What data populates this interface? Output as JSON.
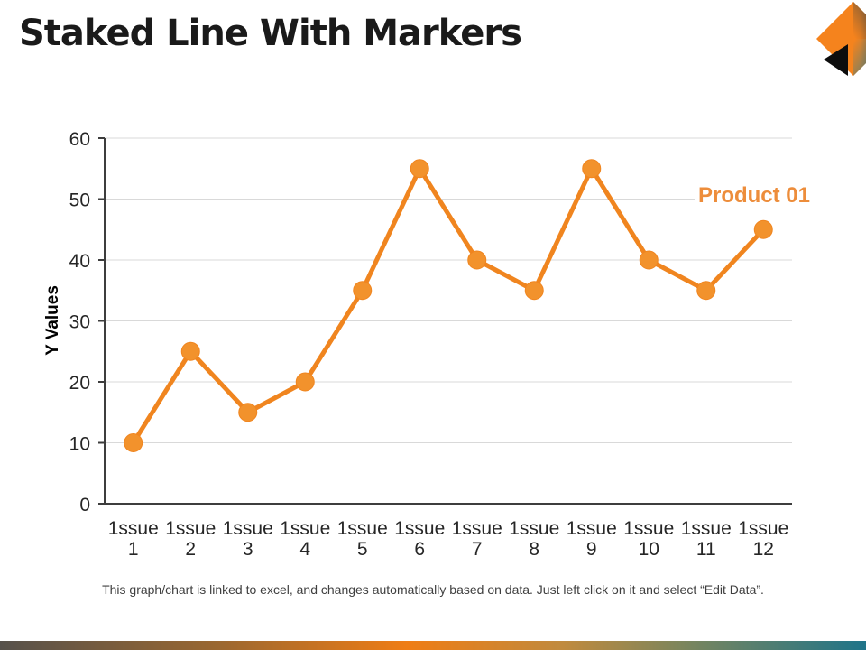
{
  "header": {
    "title": "Staked Line With Markers"
  },
  "footer": {
    "note": "This graph/chart is linked to excel, and changes automatically based on data. Just left click on it and select “Edit Data”."
  },
  "chart_data": {
    "type": "line",
    "categories": [
      "1ssue 1",
      "1ssue 2",
      "1ssue 3",
      "1ssue 4",
      "1ssue 5",
      "1ssue 6",
      "1ssue 7",
      "1ssue 8",
      "1ssue 9",
      "1ssue 10",
      "1ssue 11",
      "1ssue 12"
    ],
    "series": [
      {
        "name": "Product 01",
        "values": [
          10,
          25,
          15,
          20,
          35,
          55,
          40,
          35,
          55,
          40,
          35,
          45
        ]
      }
    ],
    "xlabel": "",
    "ylabel": "Y Values",
    "ylim": [
      0,
      60
    ],
    "yticks": [
      0,
      10,
      20,
      30,
      40,
      50,
      60
    ],
    "grid": true,
    "legend_position": "inside-top-right",
    "marker": "circle"
  },
  "theme": {
    "line_color": "#F0851F",
    "marker_color": "#F2922C",
    "legend_color": "#ED8D3B",
    "grid_color": "#D9D9D9",
    "axis_color": "#3D3D3D",
    "tick_label_color": "#262626",
    "axis_title_color": "#000000",
    "corner_orange": "#F5831D",
    "corner_dark": "#4E4A40",
    "corner_teal": "#2F7D8D",
    "corner_black": "#0D0D0D",
    "bar_gradient": [
      {
        "c": "#56514B",
        "p": 0
      },
      {
        "c": "#9A6730",
        "p": 25
      },
      {
        "c": "#EF7D15",
        "p": 47
      },
      {
        "c": "#C08A3E",
        "p": 65
      },
      {
        "c": "#76855F",
        "p": 80
      },
      {
        "c": "#1F7489",
        "p": 100
      }
    ]
  }
}
